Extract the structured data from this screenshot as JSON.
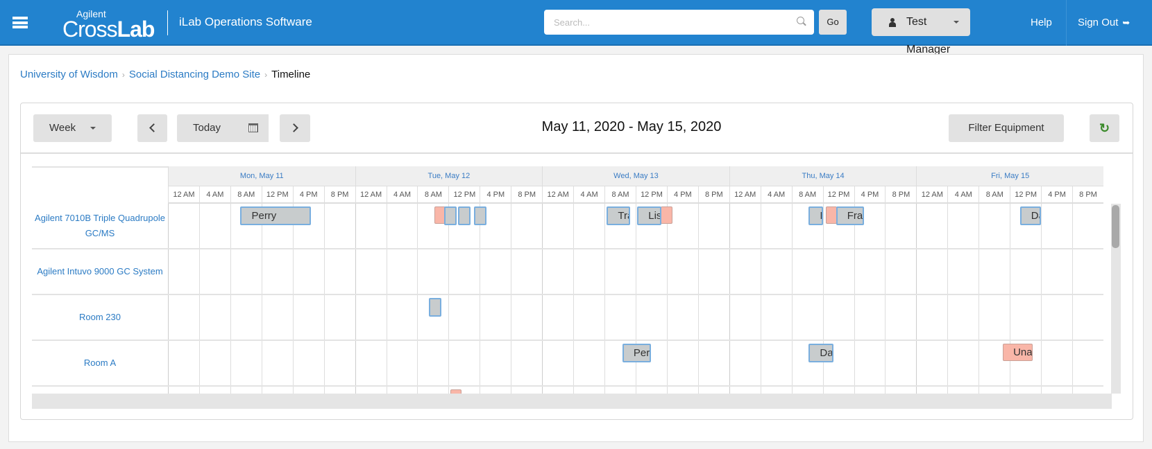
{
  "header": {
    "logo_top": "Agilent",
    "logo_main": "Cross",
    "logo_bold": "Lab",
    "app_name": "iLab Operations Software",
    "search_placeholder": "Search...",
    "go_label": "Go",
    "user_name": "Test Manager",
    "help_label": "Help",
    "sign_out_label": "Sign Out"
  },
  "breadcrumb": {
    "items": [
      "University of Wisdom",
      "Social Distancing Demo Site"
    ],
    "current": "Timeline"
  },
  "toolbar": {
    "view_label": "Week",
    "today_label": "Today",
    "date_range": "May 11, 2020 - May 15, 2020",
    "filter_label": "Filter Equipment"
  },
  "timeline": {
    "days": [
      "Mon, May 11",
      "Tue, May 12",
      "Wed, May 13",
      "Thu, May 14",
      "Fri, May 15"
    ],
    "hours": [
      "12 AM",
      "4 AM",
      "8 AM",
      "12 PM",
      "4 PM",
      "8 PM"
    ],
    "resources": [
      "Agilent 7010B Triple Quadrupole GC/MS",
      "Agilent Intuvo 9000 GC System",
      "Room 230",
      "Room A",
      ""
    ],
    "colors": {
      "booking": "#c8cccd",
      "booking_border": "#79aede",
      "unavailable": "#f9b6a8",
      "accent": "#2283cf"
    },
    "events": [
      {
        "row": 0,
        "day": 0,
        "start": 9.3,
        "end": 18.3,
        "type": "booking",
        "label": "Perry"
      },
      {
        "row": 0,
        "day": 1,
        "start": 10.2,
        "end": 11.6,
        "type": "unavailable",
        "label": ""
      },
      {
        "row": 0,
        "day": 1,
        "start": 11.4,
        "end": 12.8,
        "type": "booking",
        "label": ""
      },
      {
        "row": 0,
        "day": 1,
        "start": 13.2,
        "end": 14.7,
        "type": "booking",
        "label": ""
      },
      {
        "row": 0,
        "day": 1,
        "start": 15.3,
        "end": 16.7,
        "type": "booking",
        "label": ""
      },
      {
        "row": 0,
        "day": 2,
        "start": 8.3,
        "end": 11.3,
        "type": "booking",
        "label": "Tra"
      },
      {
        "row": 0,
        "day": 2,
        "start": 15.2,
        "end": 16.7,
        "type": "unavailable",
        "label": ""
      },
      {
        "row": 0,
        "day": 2,
        "start": 12.2,
        "end": 15.3,
        "type": "booking",
        "label": "Lis"
      },
      {
        "row": 0,
        "day": 3,
        "start": 10.2,
        "end": 12.0,
        "type": "booking",
        "label": "I"
      },
      {
        "row": 0,
        "day": 3,
        "start": 12.4,
        "end": 13.8,
        "type": "unavailable",
        "label": ""
      },
      {
        "row": 0,
        "day": 3,
        "start": 13.7,
        "end": 17.3,
        "type": "booking",
        "label": "Fra"
      },
      {
        "row": 0,
        "day": 4,
        "start": 13.3,
        "end": 16.0,
        "type": "booking",
        "label": "Da"
      },
      {
        "row": 2,
        "day": 1,
        "start": 9.5,
        "end": 10.9,
        "type": "booking",
        "label": ""
      },
      {
        "row": 3,
        "day": 2,
        "start": 10.3,
        "end": 14.0,
        "type": "booking",
        "label": "Per"
      },
      {
        "row": 3,
        "day": 3,
        "start": 10.2,
        "end": 13.4,
        "type": "booking",
        "label": "Da"
      },
      {
        "row": 3,
        "day": 4,
        "start": 11.1,
        "end": 14.9,
        "type": "unavailable",
        "label": "Una"
      },
      {
        "row": 4,
        "day": 1,
        "start": 12.2,
        "end": 13.5,
        "type": "unavailable",
        "label": ""
      }
    ]
  }
}
